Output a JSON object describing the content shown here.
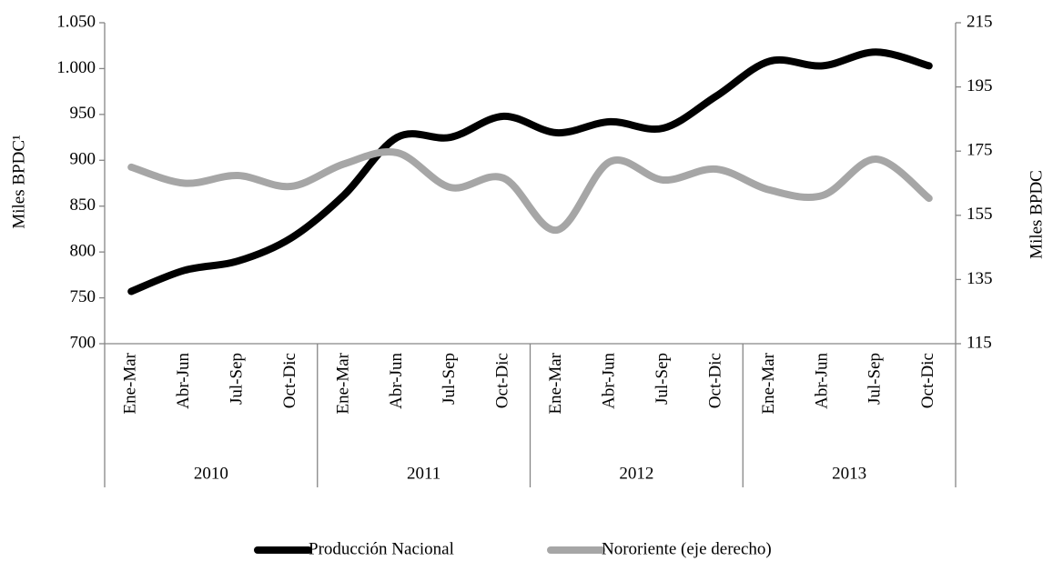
{
  "chart_data": {
    "type": "line",
    "y_label": "Miles  BPDC¹",
    "y2_label": "Miles  BPDC",
    "categories": [
      "Ene-Mar",
      "Abr-Jun",
      "Jul-Sep",
      "Oct-Dic",
      "Ene-Mar",
      "Abr-Jun",
      "Jul-Sep",
      "Oct-Dic",
      "Ene-Mar",
      "Abr-Jun",
      "Jul-Sep",
      "Oct-Dic",
      "Ene-Mar",
      "Abr-Jun",
      "Jul-Sep",
      "Oct-Dic"
    ],
    "category_groups": [
      "2010",
      "2011",
      "2012",
      "2013"
    ],
    "series": [
      {
        "name": "Producción Nacional",
        "color": "#000000",
        "values": [
          757,
          780,
          790,
          815,
          862,
          925,
          925,
          948,
          930,
          942,
          935,
          970,
          1008,
          1003,
          1018,
          1003
        ]
      },
      {
        "name": "Nororiente (eje derecho)",
        "color": "#a6a6a6",
        "axis": "y2",
        "values": [
          170,
          165,
          167.4,
          164,
          171,
          174.5,
          163.7,
          166.6,
          150.4,
          171.7,
          166,
          169.4,
          162.9,
          161.2,
          172.5,
          160.3
        ]
      }
    ],
    "ylim": [
      700,
      1050
    ],
    "yticks": [
      700,
      750,
      800,
      850,
      900,
      950,
      {
        "value": 1000,
        "label": "1.000"
      },
      {
        "value": 1050,
        "label": "1.050"
      }
    ],
    "y2lim": [
      115,
      215
    ],
    "y2ticks": [
      115,
      135,
      155,
      175,
      195,
      215
    ],
    "grid": false,
    "legend": "bottom"
  }
}
